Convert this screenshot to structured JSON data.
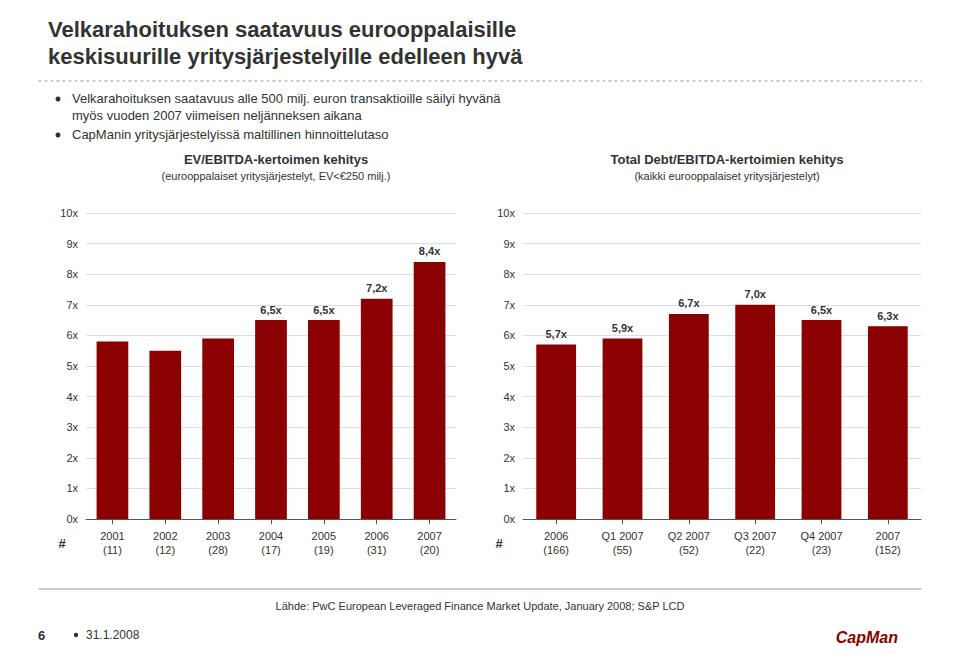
{
  "title": [
    "Velkarahoituksen saatavuus eurooppalaisille",
    "keskisuurille yritysjärjestelyille edelleen hyvä"
  ],
  "notes": [
    [
      "Velkarahoituksen saatavuus alle 500 milj. euron transaktioille säilyi hyvänä",
      "myös vuoden 2007 viimeisen neljänneksen aikana"
    ],
    [
      "CapManin yritysjärjestelyissä maltillinen hinnoittelutaso"
    ]
  ],
  "footer": "Lähde: PwC European Leveraged Finance Market Update, January 2008; S&P LCD",
  "page_number": "6",
  "date": "31.1.2008",
  "logo": "CapMan",
  "chart_data": [
    {
      "type": "bar",
      "title": "EV/EBITDA-kertoimen kehitys",
      "subtitle": "(eurooppalaiset yritysjärjestelyt, EV<€250 milj.)",
      "xlabel": "#",
      "categories": [
        "2001\n(11)",
        "2002\n(12)",
        "2003\n(28)",
        "2004\n(17)",
        "2005\n(19)",
        "2006\n(31)",
        "2007\n(20)"
      ],
      "values": [
        5.8,
        5.5,
        5.9,
        6.5,
        6.5,
        7.2,
        8.4
      ],
      "value_labels": [
        null,
        null,
        null,
        "6,5x",
        "6,5x",
        "7,2x",
        "8,4x"
      ],
      "data_labels": true,
      "color": "#8B0000",
      "ylim": [
        0,
        10
      ],
      "yticks": [
        {
          "value": 0,
          "label": "0x"
        },
        {
          "value": 1,
          "label": "1x"
        },
        {
          "value": 2,
          "label": "2x"
        },
        {
          "value": 3,
          "label": "3x"
        },
        {
          "value": 4,
          "label": "4x"
        },
        {
          "value": 5,
          "label": "5x"
        },
        {
          "value": 6,
          "label": "6x"
        },
        {
          "value": 7,
          "label": "7x"
        },
        {
          "value": 8,
          "label": "8x"
        },
        {
          "value": 9,
          "label": "9x"
        },
        {
          "value": 10,
          "label": "10x"
        }
      ],
      "grid": true
    },
    {
      "type": "bar",
      "title": "Total Debt/EBITDA-kertoimien kehitys",
      "subtitle": "(kaikki eurooppalaiset yritysjärjestelyt)",
      "xlabel": "#",
      "categories": [
        "2006\n(166)",
        "Q1 2007\n(55)",
        "Q2 2007\n(52)",
        "Q3 2007\n(22)",
        "Q4 2007\n(23)",
        "2007\n(152)"
      ],
      "values": [
        5.7,
        5.9,
        6.7,
        7.0,
        6.5,
        6.3
      ],
      "value_labels": [
        "5,7x",
        "5,9x",
        "6,7x",
        "7,0x",
        "6,5x",
        "6,3x"
      ],
      "data_labels": true,
      "color": "#8B0000",
      "ylim": [
        0,
        10
      ],
      "yticks": [
        {
          "value": 0,
          "label": "0x"
        },
        {
          "value": 1,
          "label": "1x"
        },
        {
          "value": 2,
          "label": "2x"
        },
        {
          "value": 3,
          "label": "3x"
        },
        {
          "value": 4,
          "label": "4x"
        },
        {
          "value": 5,
          "label": "5x"
        },
        {
          "value": 6,
          "label": "6x"
        },
        {
          "value": 7,
          "label": "7x"
        },
        {
          "value": 8,
          "label": "8x"
        },
        {
          "value": 9,
          "label": "9x"
        },
        {
          "value": 10,
          "label": "10x"
        }
      ],
      "grid": true
    }
  ]
}
